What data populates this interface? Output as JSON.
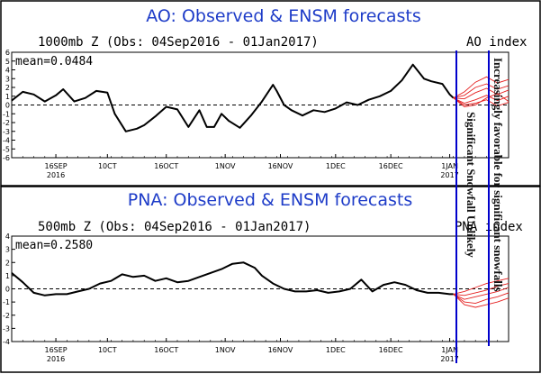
{
  "chart_data": [
    {
      "type": "line",
      "title": "AO: Observed & ENSM forecasts",
      "subtitle_left": "1000mb Z (Obs: 04Sep2016 - 01Jan2017)",
      "subtitle_right": "AO index",
      "mean_label": "mean=0.0484",
      "ylim": [
        -6,
        6
      ],
      "yticks": [
        "-6",
        "-5",
        "-4",
        "-3",
        "-2",
        "-1",
        "0",
        "1",
        "2",
        "3",
        "4",
        "5",
        "6"
      ],
      "xlim": [
        0,
        135
      ],
      "xticks": [
        {
          "x": 12,
          "label": "16SEP",
          "sub": "2016"
        },
        {
          "x": 26,
          "label": "10CT",
          "sub": ""
        },
        {
          "x": 42,
          "label": "16OCT",
          "sub": ""
        },
        {
          "x": 58,
          "label": "1NOV",
          "sub": ""
        },
        {
          "x": 73,
          "label": "16NOV",
          "sub": ""
        },
        {
          "x": 88,
          "label": "1DEC",
          "sub": ""
        },
        {
          "x": 103,
          "label": "16DEC",
          "sub": ""
        },
        {
          "x": 119,
          "label": "1JAN",
          "sub": "2017"
        }
      ],
      "series": [
        {
          "name": "observed",
          "color": "#000000",
          "x": [
            0,
            3,
            6,
            9,
            12,
            14,
            17,
            20,
            23,
            26,
            28,
            31,
            34,
            36,
            39,
            42,
            45,
            48,
            51,
            53,
            55,
            57,
            59,
            62,
            65,
            68,
            71,
            72,
            74,
            76,
            79,
            82,
            85,
            88,
            91,
            94,
            97,
            100,
            103,
            106,
            109,
            112,
            114,
            117,
            119,
            120
          ],
          "y": [
            0.5,
            1.5,
            1.2,
            0.4,
            1.1,
            1.8,
            0.4,
            0.8,
            1.6,
            1.4,
            -1.0,
            -3.0,
            -2.7,
            -2.3,
            -1.3,
            -0.2,
            -0.5,
            -2.5,
            -0.6,
            -2.5,
            -2.5,
            -1.0,
            -1.8,
            -2.6,
            -1.2,
            0.4,
            2.3,
            1.6,
            0.0,
            -0.6,
            -1.2,
            -0.6,
            -0.8,
            -0.4,
            0.3,
            0.0,
            0.6,
            1.0,
            1.6,
            2.8,
            4.6,
            3.0,
            2.7,
            2.4,
            1.2,
            0.8
          ]
        },
        {
          "name": "ensemble forecasts",
          "color": "#e52020",
          "x": [
            120,
            123,
            126,
            129,
            132,
            135
          ],
          "members": [
            [
              0.8,
              1.5,
              2.6,
              3.2,
              2.5,
              2.9
            ],
            [
              0.8,
              1.1,
              2.0,
              2.4,
              1.8,
              2.2
            ],
            [
              0.8,
              0.7,
              1.4,
              1.9,
              1.2,
              1.7
            ],
            [
              0.8,
              0.2,
              0.6,
              1.1,
              0.5,
              1.0
            ],
            [
              0.8,
              0.0,
              0.2,
              0.6,
              -0.1,
              0.3
            ],
            [
              0.8,
              -0.2,
              0.0,
              0.8,
              1.3,
              0.4
            ]
          ]
        }
      ],
      "annotations": [
        {
          "text": "Significant Snowfall Unlikely"
        },
        {
          "text": "Increasingly favorable for significant snowfalls"
        }
      ]
    },
    {
      "type": "line",
      "title": "PNA: Observed & ENSM forecasts",
      "subtitle_left": "500mb Z (Obs: 04Sep2016 - 01Jan2017)",
      "subtitle_right": "PNA index",
      "mean_label": "mean=0.2580",
      "ylim": [
        -4,
        4
      ],
      "yticks": [
        "-4",
        "-3",
        "-2",
        "-1",
        "0",
        "1",
        "2",
        "3",
        "4"
      ],
      "xlim": [
        0,
        135
      ],
      "xticks": [
        {
          "x": 12,
          "label": "16SEP",
          "sub": "2016"
        },
        {
          "x": 26,
          "label": "10CT",
          "sub": ""
        },
        {
          "x": 42,
          "label": "16OCT",
          "sub": ""
        },
        {
          "x": 58,
          "label": "1NOV",
          "sub": ""
        },
        {
          "x": 73,
          "label": "16NOV",
          "sub": ""
        },
        {
          "x": 88,
          "label": "1DEC",
          "sub": ""
        },
        {
          "x": 103,
          "label": "16DEC",
          "sub": ""
        },
        {
          "x": 119,
          "label": "1JAN",
          "sub": "2017"
        }
      ],
      "series": [
        {
          "name": "observed",
          "color": "#000000",
          "x": [
            0,
            3,
            6,
            9,
            12,
            15,
            18,
            21,
            24,
            27,
            30,
            33,
            36,
            39,
            42,
            45,
            48,
            51,
            54,
            57,
            60,
            63,
            66,
            68,
            71,
            74,
            77,
            80,
            83,
            86,
            89,
            92,
            95,
            98,
            101,
            104,
            107,
            110,
            113,
            116,
            119,
            120
          ],
          "y": [
            1.2,
            0.5,
            -0.3,
            -0.5,
            -0.4,
            -0.4,
            -0.2,
            0.0,
            0.4,
            0.6,
            1.1,
            0.9,
            1.0,
            0.6,
            0.8,
            0.5,
            0.6,
            0.9,
            1.2,
            1.5,
            1.9,
            2.0,
            1.6,
            1.0,
            0.4,
            0.0,
            -0.2,
            -0.2,
            -0.1,
            -0.3,
            -0.2,
            0.0,
            0.7,
            -0.2,
            0.3,
            0.5,
            0.3,
            -0.1,
            -0.3,
            -0.3,
            -0.4,
            -0.4
          ]
        },
        {
          "name": "ensemble forecasts",
          "color": "#e52020",
          "x": [
            120,
            123,
            126,
            129,
            132,
            135
          ],
          "members": [
            [
              -0.4,
              -0.2,
              0.1,
              0.4,
              0.6,
              0.8
            ],
            [
              -0.4,
              -0.5,
              -0.3,
              -0.1,
              0.2,
              0.4
            ],
            [
              -0.4,
              -0.8,
              -0.6,
              -0.4,
              -0.2,
              0.1
            ],
            [
              -0.4,
              -1.0,
              -1.1,
              -0.8,
              -0.6,
              -0.3
            ],
            [
              -0.4,
              -1.2,
              -1.4,
              -1.2,
              -1.0,
              -0.7
            ]
          ]
        }
      ]
    }
  ]
}
